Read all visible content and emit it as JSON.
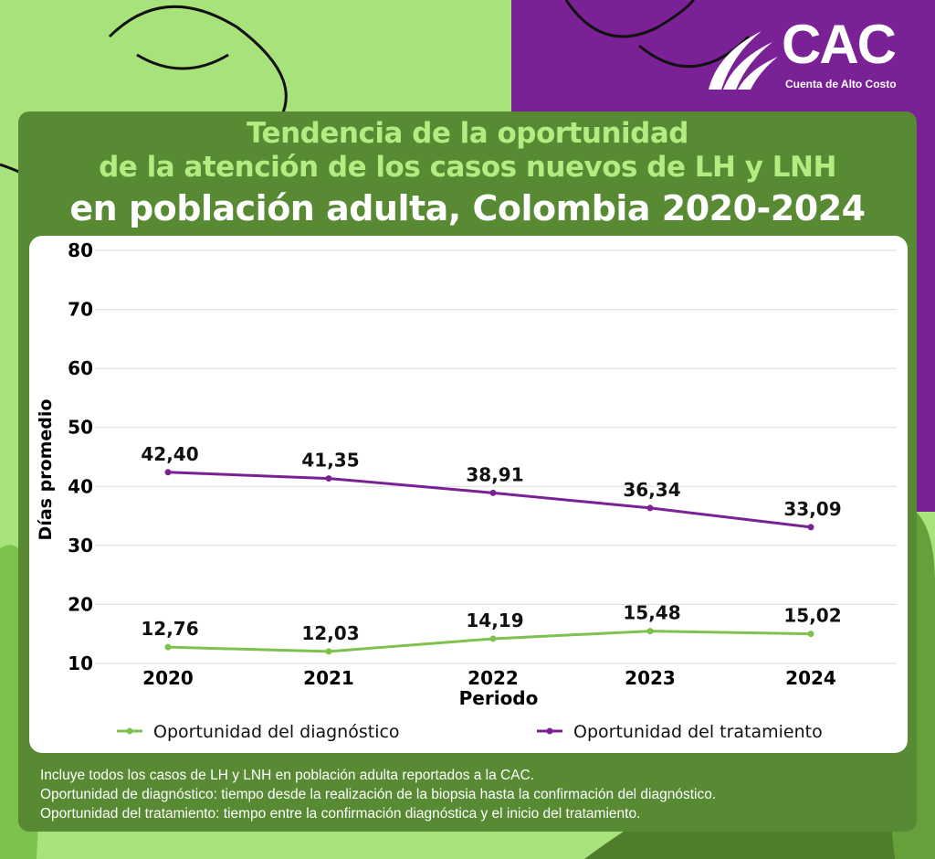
{
  "brand": {
    "name": "CAC",
    "subtitle": "Cuenta de Alto Costo"
  },
  "header": {
    "title_line1": "Tendencia de la oportunidad",
    "title_line2": "de la atención de los casos nuevos de LH y LNH",
    "title_line3": "en población adulta, Colombia 2020-2024"
  },
  "colors": {
    "background_green": "#a8e27a",
    "card_green": "#578a32",
    "title_green": "#b4ec82",
    "brand_purple": "#7b2196",
    "series_diagnostico": "#7cc24c",
    "series_tratamiento": "#7b2196"
  },
  "chart_data": {
    "type": "line",
    "categories": [
      "2020",
      "2021",
      "2022",
      "2023",
      "2024"
    ],
    "series": [
      {
        "name": "Oportunidad del diagnóstico",
        "values": [
          12.76,
          12.03,
          14.19,
          15.48,
          15.02
        ],
        "labels": [
          "12,76",
          "12,03",
          "14,19",
          "15,48",
          "15,02"
        ],
        "color": "#7cc24c"
      },
      {
        "name": "Oportunidad del tratamiento",
        "values": [
          42.4,
          41.35,
          38.91,
          36.34,
          33.09
        ],
        "labels": [
          "42,40",
          "41,35",
          "38,91",
          "36,34",
          "33,09"
        ],
        "color": "#7b2196"
      }
    ],
    "xlabel": "Periodo",
    "ylabel": "Días promedio",
    "yticks": [
      10,
      20,
      30,
      40,
      50,
      60,
      70,
      80
    ],
    "ylim": [
      10,
      80
    ],
    "grid": true,
    "legend_position": "bottom"
  },
  "notes": [
    "Incluye todos los casos de LH y LNH en población adulta reportados a la CAC.",
    "Oportunidad de diagnóstico: tiempo desde la realización de la biopsia hasta la confirmación del diagnóstico.",
    "Oportunidad del tratamiento: tiempo entre la confirmación diagnóstica y el inicio del tratamiento."
  ]
}
